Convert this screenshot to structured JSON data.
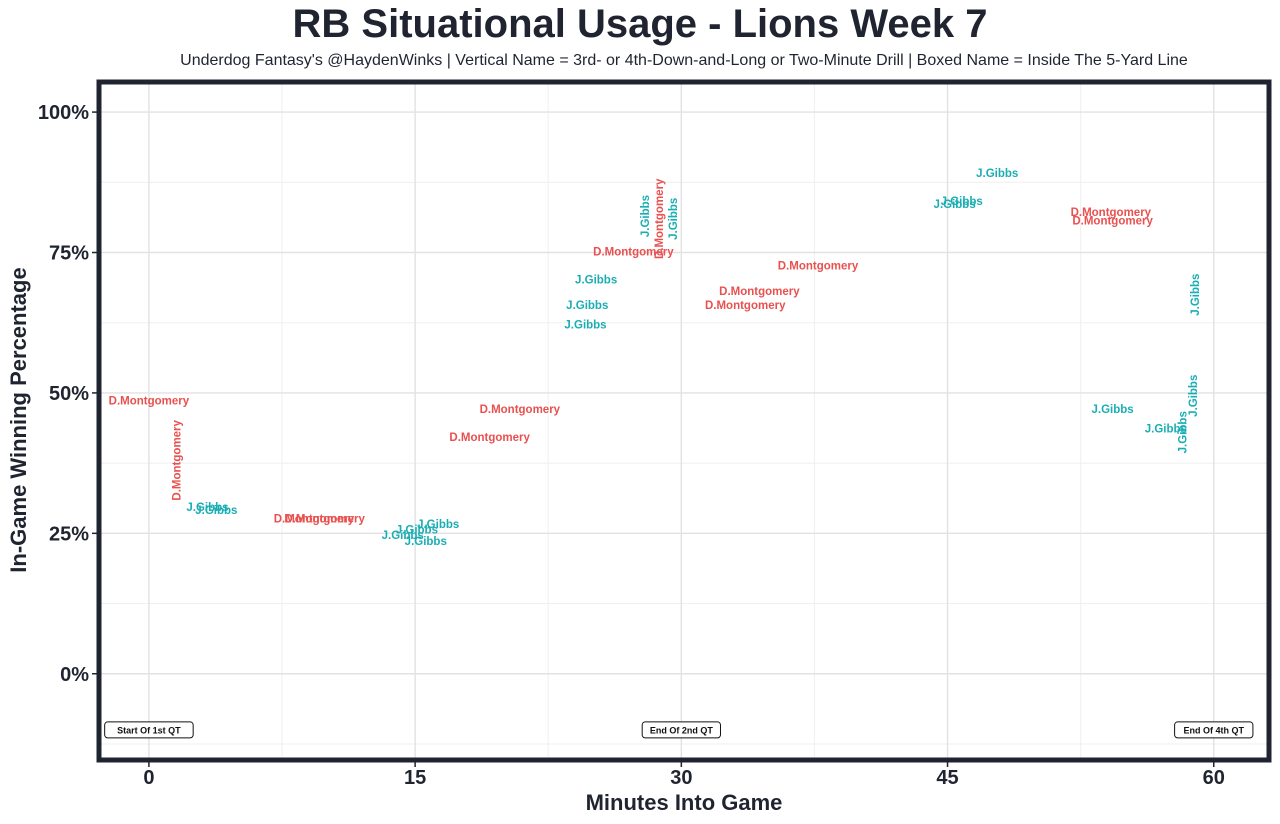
{
  "chart_data": {
    "type": "scatter",
    "title": "RB Situational Usage - Lions Week 7",
    "subtitle": "Underdog Fantasy's @HaydenWinks | Vertical Name = 3rd- or 4th-Down-and-Long or Two-Minute Drill | Boxed Name = Inside The 5-Yard Line",
    "xlabel": "Minutes Into Game",
    "ylabel": "In-Game Winning Percentage",
    "xlim": [
      -2.7,
      63
    ],
    "ylim": [
      -15,
      105
    ],
    "x_ticks": [
      0,
      15,
      30,
      45,
      60
    ],
    "x_tick_labels": [
      "0",
      "15",
      "30",
      "45",
      "60"
    ],
    "y_ticks": [
      0,
      25,
      50,
      75,
      100
    ],
    "y_tick_labels": [
      "0%",
      "25%",
      "50%",
      "75%",
      "100%"
    ],
    "grid": true,
    "legend": "none",
    "colors": {
      "D.Montgomery": "#e8514f",
      "J.Gibbs": "#1aaeb4"
    },
    "series": [
      {
        "name": "D.Montgomery",
        "points": [
          {
            "x": 0,
            "y": 48.5,
            "vertical": false
          },
          {
            "x": 1.6,
            "y": 38,
            "vertical": true
          },
          {
            "x": 9.3,
            "y": 27.5,
            "vertical": false
          },
          {
            "x": 9.9,
            "y": 27.5,
            "vertical": false
          },
          {
            "x": 20.9,
            "y": 47,
            "vertical": false
          },
          {
            "x": 19.2,
            "y": 42,
            "vertical": false
          },
          {
            "x": 27.3,
            "y": 75,
            "vertical": false
          },
          {
            "x": 28.8,
            "y": 81,
            "vertical": true
          },
          {
            "x": 34.4,
            "y": 68,
            "vertical": false
          },
          {
            "x": 33.6,
            "y": 65.5,
            "vertical": false
          },
          {
            "x": 37.7,
            "y": 72.5,
            "vertical": false
          },
          {
            "x": 54.2,
            "y": 82,
            "vertical": false
          },
          {
            "x": 54.3,
            "y": 80.5,
            "vertical": false
          }
        ]
      },
      {
        "name": "J.Gibbs",
        "points": [
          {
            "x": 3.3,
            "y": 29.5,
            "vertical": false
          },
          {
            "x": 3.8,
            "y": 29,
            "vertical": false
          },
          {
            "x": 14.3,
            "y": 24.5,
            "vertical": false
          },
          {
            "x": 15.1,
            "y": 25.5,
            "vertical": false
          },
          {
            "x": 16.3,
            "y": 26.5,
            "vertical": false
          },
          {
            "x": 15.6,
            "y": 23.5,
            "vertical": false
          },
          {
            "x": 25.2,
            "y": 70,
            "vertical": false
          },
          {
            "x": 24.7,
            "y": 65.5,
            "vertical": false
          },
          {
            "x": 24.6,
            "y": 62,
            "vertical": false
          },
          {
            "x": 28,
            "y": 81.5,
            "vertical": true
          },
          {
            "x": 29.6,
            "y": 81,
            "vertical": true
          },
          {
            "x": 47.8,
            "y": 89,
            "vertical": false
          },
          {
            "x": 45.8,
            "y": 84,
            "vertical": false
          },
          {
            "x": 45.4,
            "y": 83.5,
            "vertical": false
          },
          {
            "x": 59,
            "y": 67.5,
            "vertical": true
          },
          {
            "x": 54.3,
            "y": 47,
            "vertical": false
          },
          {
            "x": 57.3,
            "y": 43.5,
            "vertical": false
          },
          {
            "x": 58.3,
            "y": 43,
            "vertical": true
          },
          {
            "x": 58.9,
            "y": 49.5,
            "vertical": true
          }
        ]
      }
    ],
    "annotations": [
      {
        "text": "Start Of 1st QT",
        "x": 0,
        "y": -10
      },
      {
        "text": "End Of 2nd QT",
        "x": 30,
        "y": -10
      },
      {
        "text": "End Of 4th QT",
        "x": 60,
        "y": -10
      }
    ]
  }
}
